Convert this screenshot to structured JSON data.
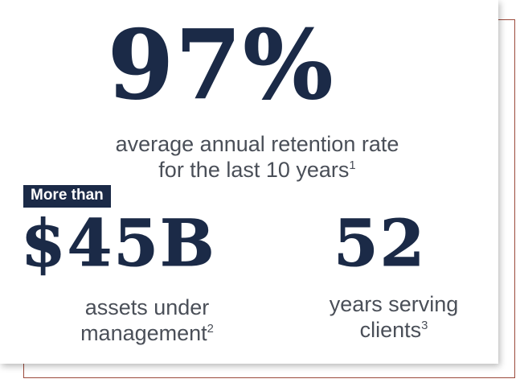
{
  "retention": {
    "value": "97%",
    "label_line1": "average annual retention rate",
    "label_line2": "for the last 10 years",
    "footnote": "1"
  },
  "assets": {
    "prefix_badge": "More than",
    "value": "$45B",
    "label_line1": "assets under",
    "label_line2": "management",
    "footnote": "2"
  },
  "years": {
    "value": "52",
    "label_line1": "years serving",
    "label_line2": "clients",
    "footnote": "3"
  },
  "colors": {
    "navy": "#1b2a47",
    "text_gray": "#4a4f58",
    "frame_rust": "#9b4a3b"
  }
}
